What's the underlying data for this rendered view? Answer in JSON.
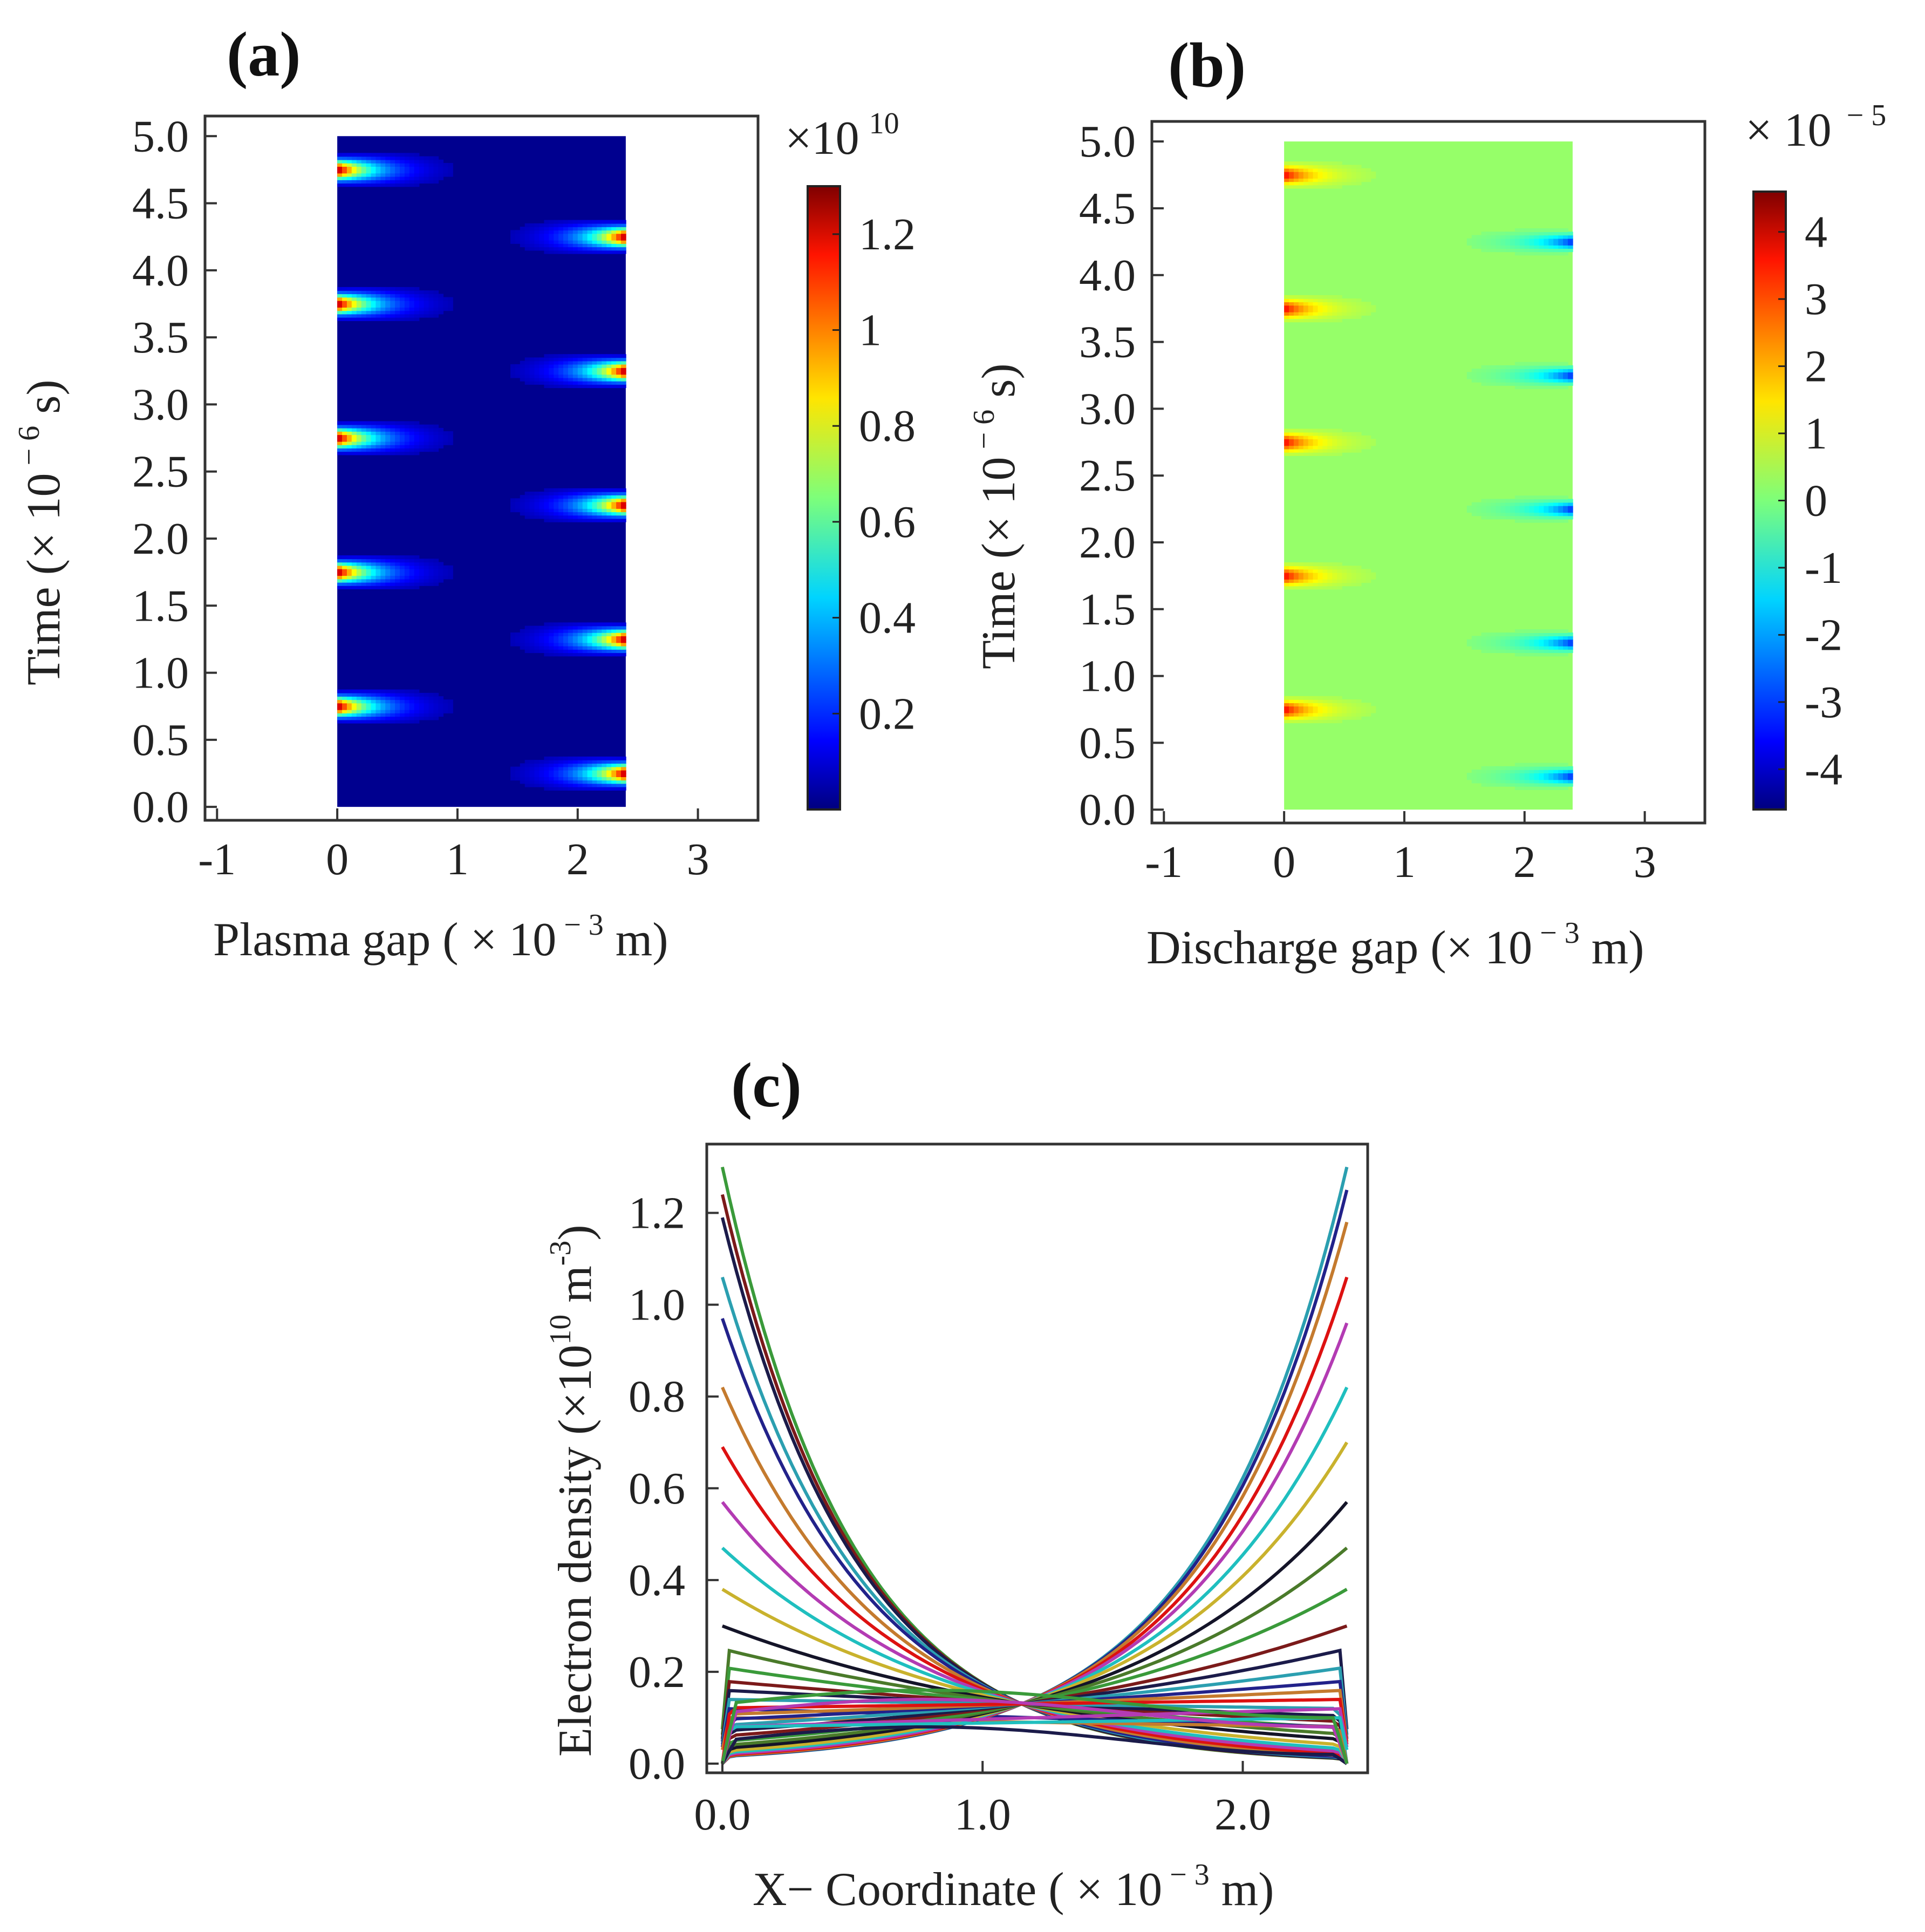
{
  "chart_data": [
    {
      "panel": "(a)",
      "type": "heatmap",
      "xlabel": {
        "main": "Plasma gap ( × 10",
        "exp": " − 3",
        "unit": " m)"
      },
      "ylabel": {
        "main": "Time (× 10",
        "exp": " − 6",
        "unit": " s)"
      },
      "x_ticks": [
        "-1",
        "0",
        "1",
        "2",
        "3"
      ],
      "y_ticks": [
        "0.0",
        "0.5",
        "1.0",
        "1.5",
        "2.0",
        "2.5",
        "3.0",
        "3.5",
        "4.0",
        "4.5",
        "5.0"
      ],
      "xlim": [
        -1.1,
        3.5
      ],
      "ylim": [
        -0.1,
        5.15
      ],
      "data_x_range": [
        0,
        2.4
      ],
      "data_y_range": [
        0,
        5
      ],
      "colorbar": {
        "multiplier": "×10",
        "multiplier_exp": "10",
        "ticks": [
          "0.2",
          "0.4",
          "0.6",
          "0.8",
          "1",
          "1.2"
        ],
        "range": [
          0,
          1.3
        ]
      },
      "hot_spots_left_times": [
        0.75,
        1.75,
        2.75,
        3.75,
        4.75
      ],
      "hot_spots_right_times": [
        0.25,
        1.25,
        2.25,
        3.25,
        4.25
      ],
      "peak_value": 1.3,
      "background_value": 0.02
    },
    {
      "panel": "(b)",
      "type": "heatmap",
      "xlabel": {
        "main": "Discharge  gap (× 10",
        "exp": " − 3",
        "unit": " m)"
      },
      "ylabel": {
        "main": "Time (× 10",
        "exp": " − 6",
        "unit": " s)"
      },
      "x_ticks": [
        "-1",
        "0",
        "1",
        "2",
        "3"
      ],
      "y_ticks": [
        "0.0",
        "0.5",
        "1.0",
        "1.5",
        "2.0",
        "2.5",
        "3.0",
        "3.5",
        "4.0",
        "4.5",
        "5.0"
      ],
      "xlim": [
        -1.1,
        3.5
      ],
      "ylim": [
        -0.1,
        5.15
      ],
      "data_x_range": [
        0,
        2.4
      ],
      "data_y_range": [
        0,
        5
      ],
      "colorbar": {
        "multiplier": "× 10",
        "multiplier_exp": " − 5",
        "ticks": [
          "4",
          "3",
          "2",
          "1",
          "0",
          "-1",
          "-2",
          "-3",
          "-4"
        ],
        "range": [
          -4.6,
          4.6
        ]
      },
      "hot_spots_left_times": [
        0.75,
        1.75,
        2.75,
        3.75,
        4.75
      ],
      "cold_spots_right_times": [
        0.25,
        1.25,
        2.25,
        3.25,
        4.25
      ],
      "background_value": 0.2
    },
    {
      "panel": "(c)",
      "type": "line",
      "xlabel": {
        "main": "X− Coordinate  ( × 10",
        "exp": " − 3",
        "unit": " m)"
      },
      "ylabel": {
        "main": "Electron density (×10",
        "exp": "10",
        "unit": "  m",
        "unit_exp": "-3",
        "close": ")"
      },
      "x_ticks": [
        "0.0",
        "1.0",
        "2.0"
      ],
      "y_ticks": [
        "0.0",
        "0.2",
        "0.4",
        "0.6",
        "0.8",
        "1.0",
        "1.2"
      ],
      "xlim": [
        -0.06,
        2.48
      ],
      "ylim": [
        -0.02,
        1.35
      ],
      "x_domain": [
        0.0,
        2.4
      ],
      "series_shape": "exponential decay from each electrode toward a crossing near x≈1.15, y≈0.13",
      "left_peak_series": [
        1.3,
        1.24,
        1.19,
        1.06,
        0.97,
        0.82,
        0.69,
        0.57,
        0.47,
        0.38,
        0.3,
        0.25,
        0.21,
        0.18,
        0.16,
        0.14,
        0.12,
        0.1
      ],
      "right_peak_series": [
        1.3,
        1.25,
        1.18,
        1.06,
        0.96,
        0.82,
        0.7,
        0.57,
        0.47,
        0.38,
        0.3,
        0.25,
        0.21,
        0.18,
        0.16,
        0.14,
        0.12,
        0.1
      ],
      "colors": [
        "#3a9a3a",
        "#7b1a1a",
        "#1b1b4a",
        "#2b9fb0",
        "#22228a",
        "#c47a2e",
        "#d11",
        "#b33bb3",
        "#1fbfbf",
        "#c9b22d",
        "#141428",
        "#4a7a2a"
      ]
    }
  ]
}
